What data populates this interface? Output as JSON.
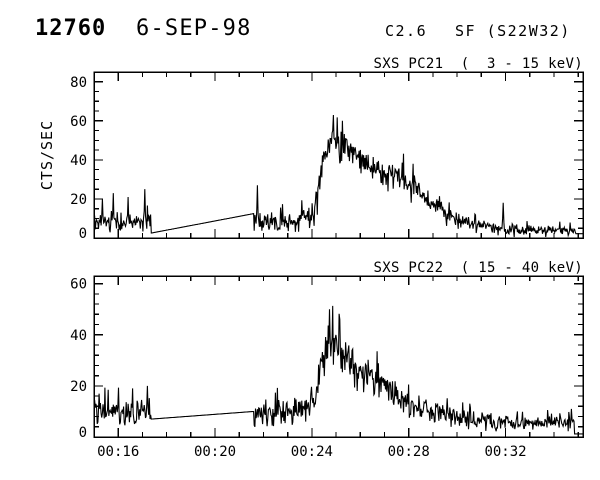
{
  "header": {
    "event_number": "12760",
    "date": "6-SEP-98",
    "goes_class": "C2.6",
    "flare_site": "SF (S22W32)"
  },
  "colors": {
    "foreground": "#000000",
    "background": "#ffffff"
  },
  "chart_data": [
    {
      "type": "line",
      "title": "SXS PC21  (  3 - 15 keV)",
      "ylabel": "CTS/SEC",
      "ylim": [
        0,
        85
      ],
      "yticks": [
        0,
        20,
        40,
        60,
        80
      ],
      "y_minor_step": 5,
      "x_range_minutes": [
        15.0,
        35.2
      ],
      "xtick_minutes": [
        16,
        20,
        24,
        28,
        32
      ],
      "xtick_labels": [
        "00:16",
        "00:20",
        "00:24",
        "00:28",
        "00:32"
      ],
      "x_minor_step_minutes": 1,
      "show_x_labels": false,
      "grid": false,
      "envelope_format": [
        "time_minutes",
        "mean_cts_per_sec",
        "noise_half_amplitude"
      ],
      "envelope": [
        [
          15.0,
          8,
          5
        ],
        [
          17.35,
          8,
          5
        ],
        [
          21.6,
          9,
          6
        ],
        [
          22.3,
          8,
          5
        ],
        [
          23.3,
          8,
          5
        ],
        [
          24.05,
          12,
          6
        ],
        [
          24.35,
          32,
          10
        ],
        [
          24.6,
          47,
          10
        ],
        [
          24.95,
          51,
          11
        ],
        [
          25.45,
          46,
          9
        ],
        [
          25.95,
          41,
          8
        ],
        [
          26.5,
          37,
          8
        ],
        [
          27.1,
          33,
          7
        ],
        [
          27.8,
          29,
          7
        ],
        [
          28.5,
          23,
          6
        ],
        [
          29.2,
          15,
          5
        ],
        [
          29.9,
          10,
          4
        ],
        [
          30.7,
          6.5,
          3.5
        ],
        [
          31.7,
          4.5,
          3
        ],
        [
          33.0,
          4,
          2.5
        ],
        [
          35.2,
          3.5,
          2.5
        ]
      ],
      "data_gap": {
        "t_start": 17.35,
        "t_end": 21.6,
        "v_start": 2.5,
        "v_end": 12.5
      },
      "tail_flat": {
        "t_start": 34.9,
        "value": 2.2
      },
      "peak": {
        "time": "00:24:55",
        "max_cts_per_sec": 63
      },
      "spikes": [
        [
          15.35,
          20
        ],
        [
          15.8,
          23
        ],
        [
          16.4,
          21
        ],
        [
          17.1,
          25
        ],
        [
          21.75,
          27
        ],
        [
          24.9,
          63
        ],
        [
          25.25,
          60
        ],
        [
          31.9,
          18
        ]
      ]
    },
    {
      "type": "line",
      "title": "SXS PC22  ( 15 - 40 keV)",
      "ylabel": "",
      "ylim": [
        0,
        63
      ],
      "yticks": [
        0,
        20,
        40,
        60
      ],
      "y_minor_step": 4,
      "x_range_minutes": [
        15.0,
        35.2
      ],
      "xtick_minutes": [
        16,
        20,
        24,
        28,
        32
      ],
      "xtick_labels": [
        "00:16",
        "00:20",
        "00:24",
        "00:28",
        "00:32"
      ],
      "x_minor_step_minutes": 1,
      "show_x_labels": true,
      "grid": false,
      "envelope_format": [
        "time_minutes",
        "mean_cts_per_sec",
        "noise_half_amplitude"
      ],
      "envelope": [
        [
          15.0,
          10,
          5
        ],
        [
          17.35,
          10,
          5
        ],
        [
          21.6,
          8.5,
          5
        ],
        [
          22.5,
          9,
          5
        ],
        [
          23.6,
          9.5,
          5
        ],
        [
          24.1,
          14,
          6
        ],
        [
          24.4,
          30,
          9
        ],
        [
          24.72,
          37,
          10
        ],
        [
          25.2,
          33,
          8
        ],
        [
          25.8,
          28,
          7
        ],
        [
          26.5,
          23,
          6
        ],
        [
          27.2,
          18,
          6
        ],
        [
          27.9,
          15,
          6
        ],
        [
          28.7,
          11.5,
          5
        ],
        [
          29.5,
          8.5,
          4
        ],
        [
          30.3,
          7,
          3.5
        ],
        [
          31.5,
          6,
          3
        ],
        [
          33.5,
          5.5,
          3
        ],
        [
          35.1,
          5.5,
          3
        ]
      ],
      "data_gap": {
        "t_start": 17.35,
        "t_end": 21.6,
        "v_start": 7,
        "v_end": 10
      },
      "tail_flat": {
        "t_start": 34.85,
        "value": 1.2
      },
      "peak": {
        "time": "00:24:45",
        "max_cts_per_sec": 50
      },
      "spikes": [
        [
          15.2,
          17
        ],
        [
          16.6,
          19
        ],
        [
          17.2,
          20
        ],
        [
          24.72,
          50
        ],
        [
          25.15,
          46
        ],
        [
          34.72,
          11
        ]
      ]
    }
  ]
}
